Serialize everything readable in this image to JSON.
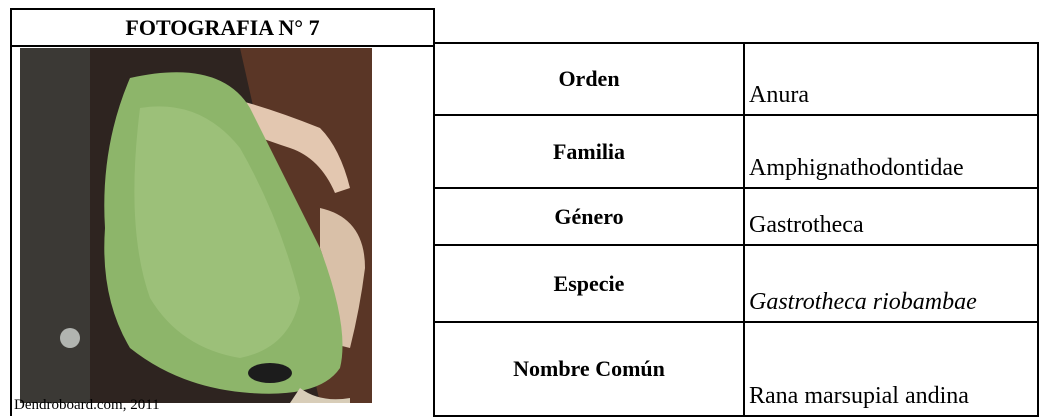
{
  "header": {
    "title": "FOTOGRAFIA N° 7"
  },
  "photo": {
    "caption": "Dendroboard.com, 2011"
  },
  "table": {
    "rows": [
      [
        "Orden",
        "Anura"
      ],
      [
        "Familia",
        "Amphignathodontidae"
      ],
      [
        "Género",
        "Gastrotheca"
      ],
      [
        "Especie",
        "Gastrotheca riobambae"
      ],
      [
        "Nombre Común",
        "Rana marsupial andina"
      ]
    ]
  }
}
